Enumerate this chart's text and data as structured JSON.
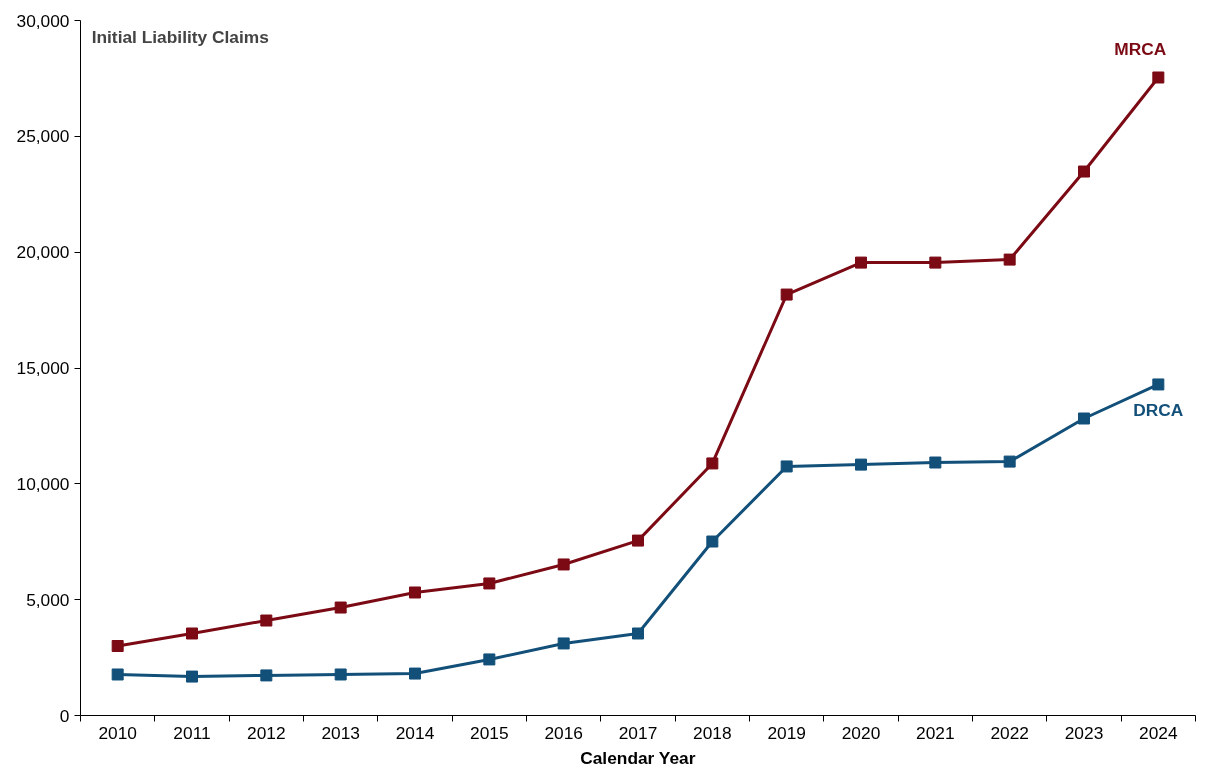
{
  "chart_data": {
    "type": "line",
    "title": "Initial Liability Claims",
    "xlabel": "Calendar Year",
    "categories": [
      "2010",
      "2011",
      "2012",
      "2013",
      "2014",
      "2015",
      "2016",
      "2017",
      "2018",
      "2019",
      "2020",
      "2021",
      "2022",
      "2023",
      "2024"
    ],
    "series": [
      {
        "name": "MRCA",
        "color": "#7b0a14",
        "values": [
          3000,
          3540,
          4100,
          4660,
          5310,
          5700,
          6520,
          7550,
          10880,
          18170,
          19550,
          19550,
          19680,
          23480,
          27540
        ]
      },
      {
        "name": "DRCA",
        "color": "#12507a",
        "values": [
          1770,
          1680,
          1730,
          1770,
          1810,
          2420,
          3110,
          3540,
          7510,
          10750,
          10830,
          10920,
          10960,
          12820,
          14290
        ]
      }
    ],
    "ylim": [
      0,
      30000
    ],
    "yticks": [
      {
        "value": 0,
        "label": "0"
      },
      {
        "value": 5000,
        "label": "5,000"
      },
      {
        "value": 10000,
        "label": "10,000"
      },
      {
        "value": 15000,
        "label": "15,000"
      },
      {
        "value": 20000,
        "label": "20,000"
      },
      {
        "value": 25000,
        "label": "25,000"
      },
      {
        "value": 30000,
        "label": "30,000"
      }
    ],
    "marker": "square",
    "line_style": "solid",
    "grid": false
  }
}
